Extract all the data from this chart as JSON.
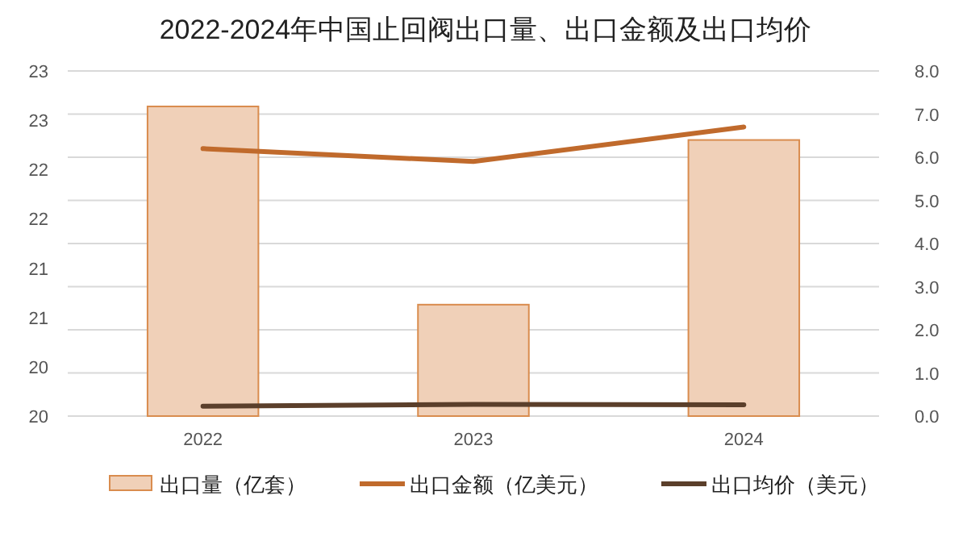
{
  "chart_data": {
    "type": "bar",
    "title": "2022-2024年中国止回阀出口量、出口金额及出口均价",
    "categories": [
      "2022",
      "2023",
      "2024"
    ],
    "series": [
      {
        "name": "出口量（亿套）",
        "color": "#f0d0b8",
        "values": [
          23.14,
          21.13,
          22.8
        ]
      },
      {
        "name": "出口金额（亿美元）",
        "type": "line",
        "axis": "y2",
        "color": "#c06a2c",
        "values": [
          6.2,
          5.9,
          6.7
        ]
      },
      {
        "name": "出口均价（美元）",
        "type": "line",
        "axis": "y2",
        "color": "#5b3f2b",
        "values": [
          0.23,
          0.27,
          0.26
        ]
      }
    ],
    "ylim": [
      20,
      23.5
    ],
    "yticks": [
      20,
      {
        "value": 20.5,
        "label": "20"
      },
      21,
      {
        "value": 21.5,
        "label": "21"
      },
      22,
      {
        "value": 22.5,
        "label": "22"
      },
      23,
      {
        "value": 23.5,
        "label": "23"
      }
    ],
    "y2lim": [
      0,
      8
    ],
    "y2ticks": [
      {
        "value": 0,
        "label": "0.0"
      },
      {
        "value": 1,
        "label": "1.0"
      },
      {
        "value": 2,
        "label": "2.0"
      },
      {
        "value": 3,
        "label": "3.0"
      },
      {
        "value": 4,
        "label": "4.0"
      },
      {
        "value": 5,
        "label": "5.0"
      },
      {
        "value": 6,
        "label": "6.0"
      },
      {
        "value": 7,
        "label": "7.0"
      },
      {
        "value": 8,
        "label": "8.0"
      }
    ],
    "grid": "y",
    "legend": "bottom",
    "marker": "none",
    "line_style": "solid"
  }
}
